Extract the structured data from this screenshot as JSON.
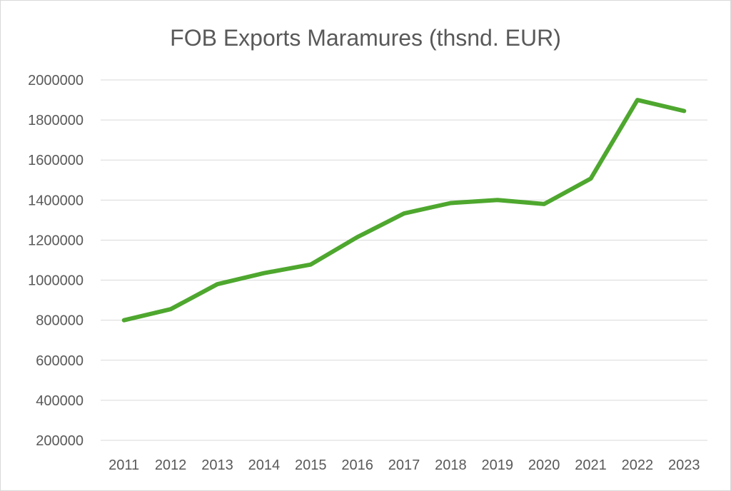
{
  "chart_data": {
    "type": "line",
    "title": "FOB Exports Maramures (thsnd. EUR)",
    "xlabel": "",
    "ylabel": "",
    "categories": [
      "2011",
      "2012",
      "2013",
      "2014",
      "2015",
      "2016",
      "2017",
      "2018",
      "2019",
      "2020",
      "2021",
      "2022",
      "2023"
    ],
    "series": [
      {
        "values": [
          800000,
          855000,
          980000,
          1035000,
          1078000,
          1215000,
          1333000,
          1385000,
          1400000,
          1380000,
          1507000,
          1900000,
          1845000
        ],
        "color": "#4ea72e"
      }
    ],
    "ylim": [
      200000,
      2000000
    ],
    "yticks": [
      "200000",
      "400000",
      "600000",
      "800000",
      "1000000",
      "1200000",
      "1400000",
      "1600000",
      "1800000",
      "2000000"
    ],
    "grid": true,
    "legend": "none"
  }
}
